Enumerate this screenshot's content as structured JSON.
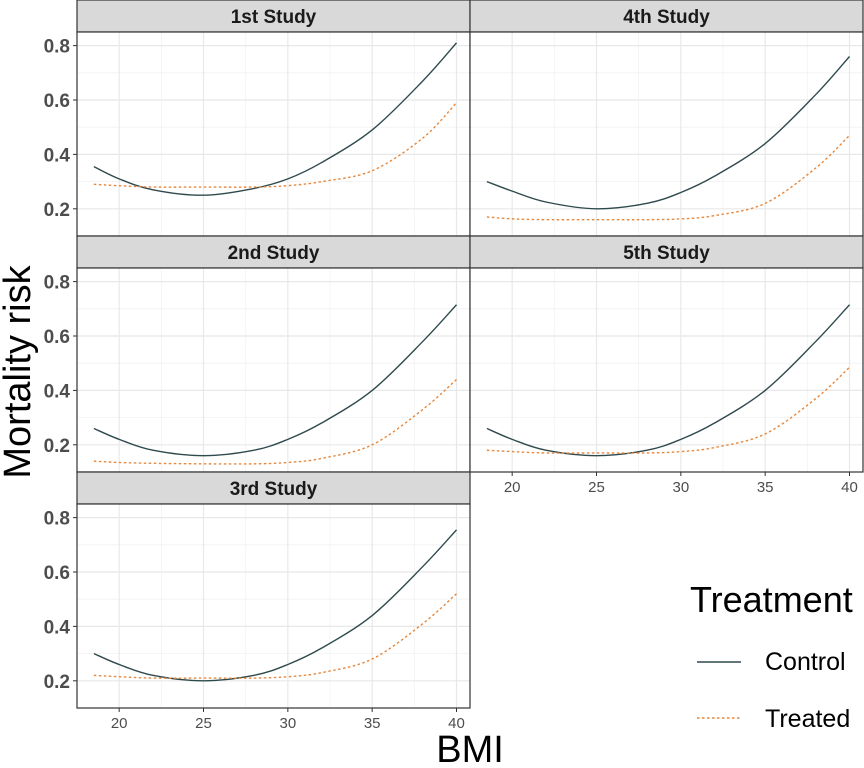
{
  "chart_data": {
    "type": "line",
    "xlabel": "BMI",
    "ylabel": "Mortality risk",
    "xlim": [
      17.5,
      40.8
    ],
    "ylim": [
      0.1,
      0.85
    ],
    "x_ticks": [
      20,
      25,
      30,
      35,
      40
    ],
    "y_ticks": [
      0.2,
      0.4,
      0.6,
      0.8
    ],
    "grid": true,
    "legend": {
      "title": "Treatment",
      "position": "bottom-right",
      "entries": [
        {
          "label": "Control",
          "color": "#2f4a4d",
          "style": "solid"
        },
        {
          "label": "Treated",
          "color": "#e8873a",
          "style": "dotted"
        }
      ]
    },
    "series_colors": {
      "Control": "#2f4a4d",
      "Treated": "#e8873a"
    },
    "panels": [
      {
        "title": "1st Study",
        "x": [
          18.5,
          20,
          22,
          25,
          28,
          30,
          32,
          35,
          38,
          40
        ],
        "series": [
          {
            "name": "Control",
            "values": [
              0.355,
              0.31,
              0.27,
              0.25,
              0.275,
              0.31,
              0.37,
              0.49,
              0.67,
              0.81
            ]
          },
          {
            "name": "Treated",
            "values": [
              0.29,
              0.285,
              0.28,
              0.28,
              0.28,
              0.285,
              0.3,
              0.34,
              0.46,
              0.59
            ]
          }
        ]
      },
      {
        "title": "4th Study",
        "x": [
          18.5,
          20,
          22,
          25,
          28,
          30,
          32,
          35,
          38,
          40
        ],
        "series": [
          {
            "name": "Control",
            "values": [
              0.3,
              0.265,
              0.225,
              0.2,
              0.22,
              0.26,
              0.32,
              0.44,
              0.62,
              0.76
            ]
          },
          {
            "name": "Treated",
            "values": [
              0.17,
              0.163,
              0.16,
              0.16,
              0.16,
              0.163,
              0.175,
              0.22,
              0.35,
              0.47
            ]
          }
        ]
      },
      {
        "title": "2nd Study",
        "x": [
          18.5,
          20,
          22,
          25,
          28,
          30,
          32,
          35,
          38,
          40
        ],
        "series": [
          {
            "name": "Control",
            "values": [
              0.26,
              0.22,
              0.18,
              0.16,
              0.18,
              0.22,
              0.28,
              0.4,
              0.58,
              0.715
            ]
          },
          {
            "name": "Treated",
            "values": [
              0.14,
              0.135,
              0.132,
              0.13,
              0.13,
              0.135,
              0.15,
              0.2,
              0.33,
              0.44
            ]
          }
        ]
      },
      {
        "title": "5th Study",
        "x": [
          18.5,
          20,
          22,
          25,
          28,
          30,
          32,
          35,
          38,
          40
        ],
        "series": [
          {
            "name": "Control",
            "values": [
              0.26,
              0.22,
              0.18,
              0.16,
              0.18,
              0.22,
              0.28,
              0.4,
              0.58,
              0.715
            ]
          },
          {
            "name": "Treated",
            "values": [
              0.18,
              0.175,
              0.17,
              0.17,
              0.17,
              0.175,
              0.19,
              0.24,
              0.37,
              0.485
            ]
          }
        ]
      },
      {
        "title": "3rd Study",
        "x": [
          18.5,
          20,
          22,
          25,
          28,
          30,
          32,
          35,
          38,
          40
        ],
        "series": [
          {
            "name": "Control",
            "values": [
              0.3,
              0.26,
              0.22,
              0.2,
              0.22,
              0.26,
              0.32,
              0.44,
              0.62,
              0.755
            ]
          },
          {
            "name": "Treated",
            "values": [
              0.22,
              0.215,
              0.21,
              0.21,
              0.21,
              0.215,
              0.23,
              0.28,
              0.41,
              0.52
            ]
          }
        ]
      }
    ]
  }
}
